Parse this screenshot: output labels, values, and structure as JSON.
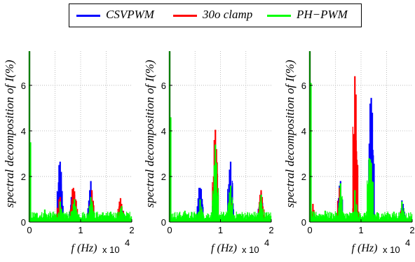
{
  "legend": {
    "entries": [
      {
        "label": "CSVPWM",
        "color": "#0000ff"
      },
      {
        "label": "30o clamp",
        "color": "#ff0000"
      },
      {
        "label": "PH−PWM",
        "color": "#00ff00"
      }
    ]
  },
  "chart_data": [
    {
      "type": "line",
      "xlabel": "f (Hz)",
      "x_multiplier": "x 10",
      "x_multiplier_exp": "4",
      "ylabel": "spectral decomposition of I(%)",
      "xlim": [
        0,
        2
      ],
      "ylim": [
        0,
        7.5
      ],
      "xticks": [
        "0",
        "1",
        "2"
      ],
      "yticks": [
        "0",
        "2",
        "4",
        "6"
      ],
      "grid": true,
      "series": [
        {
          "name": "CSVPWM",
          "color": "#0000ff",
          "x": [
            0,
            0.58,
            0.6,
            0.62,
            0.82,
            0.88,
            1.18,
            1.2,
            1.22,
            1.78,
            1.8,
            1.82
          ],
          "y": [
            7.5,
            2.5,
            2.65,
            2.2,
            1.1,
            1.2,
            1.4,
            1.8,
            1.3,
            0.6,
            0.65,
            0.5
          ]
        },
        {
          "name": "30o clamp",
          "color": "#ff0000",
          "x": [
            0,
            0.58,
            0.6,
            0.84,
            0.86,
            0.88,
            0.9,
            1.2,
            1.22,
            1.76,
            1.78,
            1.8
          ],
          "y": [
            7.5,
            1.0,
            1.1,
            1.45,
            1.5,
            1.35,
            1.0,
            0.9,
            1.4,
            0.9,
            1.05,
            0.8
          ]
        },
        {
          "name": "PH−PWM",
          "color": "#00ff00",
          "x": [
            0,
            0.02,
            0.3,
            0.6,
            0.86,
            0.88,
            0.9,
            1.2,
            1.22,
            1.78,
            1.8
          ],
          "y": [
            7.5,
            3.5,
            0.55,
            0.9,
            0.8,
            1.0,
            0.7,
            1.1,
            0.9,
            0.6,
            0.7
          ]
        }
      ]
    },
    {
      "type": "line",
      "xlabel": "f (Hz)",
      "x_multiplier": "x 10",
      "x_multiplier_exp": "4",
      "ylabel": "spectral decomposition of I(%)",
      "xlim": [
        0,
        2
      ],
      "ylim": [
        0,
        7.5
      ],
      "xticks": [
        "0",
        "1",
        "2"
      ],
      "yticks": [
        "0",
        "2",
        "4",
        "6"
      ],
      "grid": true,
      "series": [
        {
          "name": "CSVPWM",
          "color": "#0000ff",
          "x": [
            0,
            0.58,
            0.6,
            0.62,
            0.88,
            0.9,
            1.18,
            1.2,
            1.22,
            1.78,
            1.8
          ],
          "y": [
            7.5,
            1.5,
            1.5,
            1.45,
            1.5,
            2.1,
            2.3,
            2.65,
            1.5,
            1.0,
            1.3
          ]
        },
        {
          "name": "30o clamp",
          "color": "#ff0000",
          "x": [
            0,
            0.02,
            0.6,
            0.88,
            0.9,
            0.92,
            1.2,
            1.78,
            1.8,
            1.82
          ],
          "y": [
            7.5,
            0.5,
            0.9,
            3.6,
            4.05,
            3.2,
            1.4,
            1.2,
            1.4,
            1.1
          ]
        },
        {
          "name": "PH−PWM",
          "color": "#00ff00",
          "x": [
            0,
            0.02,
            0.3,
            0.6,
            0.88,
            0.9,
            0.92,
            1.18,
            1.2,
            1.78,
            1.8
          ],
          "y": [
            7.5,
            4.6,
            0.5,
            1.0,
            2.5,
            3.4,
            2.6,
            1.3,
            1.6,
            0.9,
            1.2
          ]
        }
      ]
    },
    {
      "type": "line",
      "xlabel": "f (Hz)",
      "x_multiplier": "x 10",
      "x_multiplier_exp": "4",
      "ylabel": "spectral decomposition of I(%)",
      "xlim": [
        0,
        2
      ],
      "ylim": [
        0,
        7.5
      ],
      "xticks": [
        "0",
        "1",
        "2"
      ],
      "yticks": [
        "0",
        "2",
        "4",
        "6"
      ],
      "grid": true,
      "series": [
        {
          "name": "CSVPWM",
          "color": "#0000ff",
          "x": [
            0,
            0.58,
            0.6,
            1.18,
            1.2,
            1.22,
            1.8,
            1.82
          ],
          "y": [
            7.5,
            1.6,
            1.8,
            5.2,
            5.45,
            4.8,
            0.95,
            0.8
          ]
        },
        {
          "name": "30o clamp",
          "color": "#ff0000",
          "x": [
            0,
            0.02,
            0.06,
            0.58,
            0.86,
            0.88,
            0.9,
            0.92,
            1.2,
            1.8
          ],
          "y": [
            7.5,
            0.6,
            0.8,
            1.5,
            1.0,
            6.4,
            5.6,
            1.0,
            2.6,
            0.8
          ]
        },
        {
          "name": "PH−PWM",
          "color": "#00ff00",
          "x": [
            0,
            0.02,
            0.3,
            0.6,
            0.88,
            1.16,
            1.18,
            1.2,
            1.8
          ],
          "y": [
            7.5,
            6.1,
            0.5,
            1.7,
            1.4,
            2.8,
            2.75,
            2.6,
            0.9
          ]
        }
      ]
    }
  ]
}
